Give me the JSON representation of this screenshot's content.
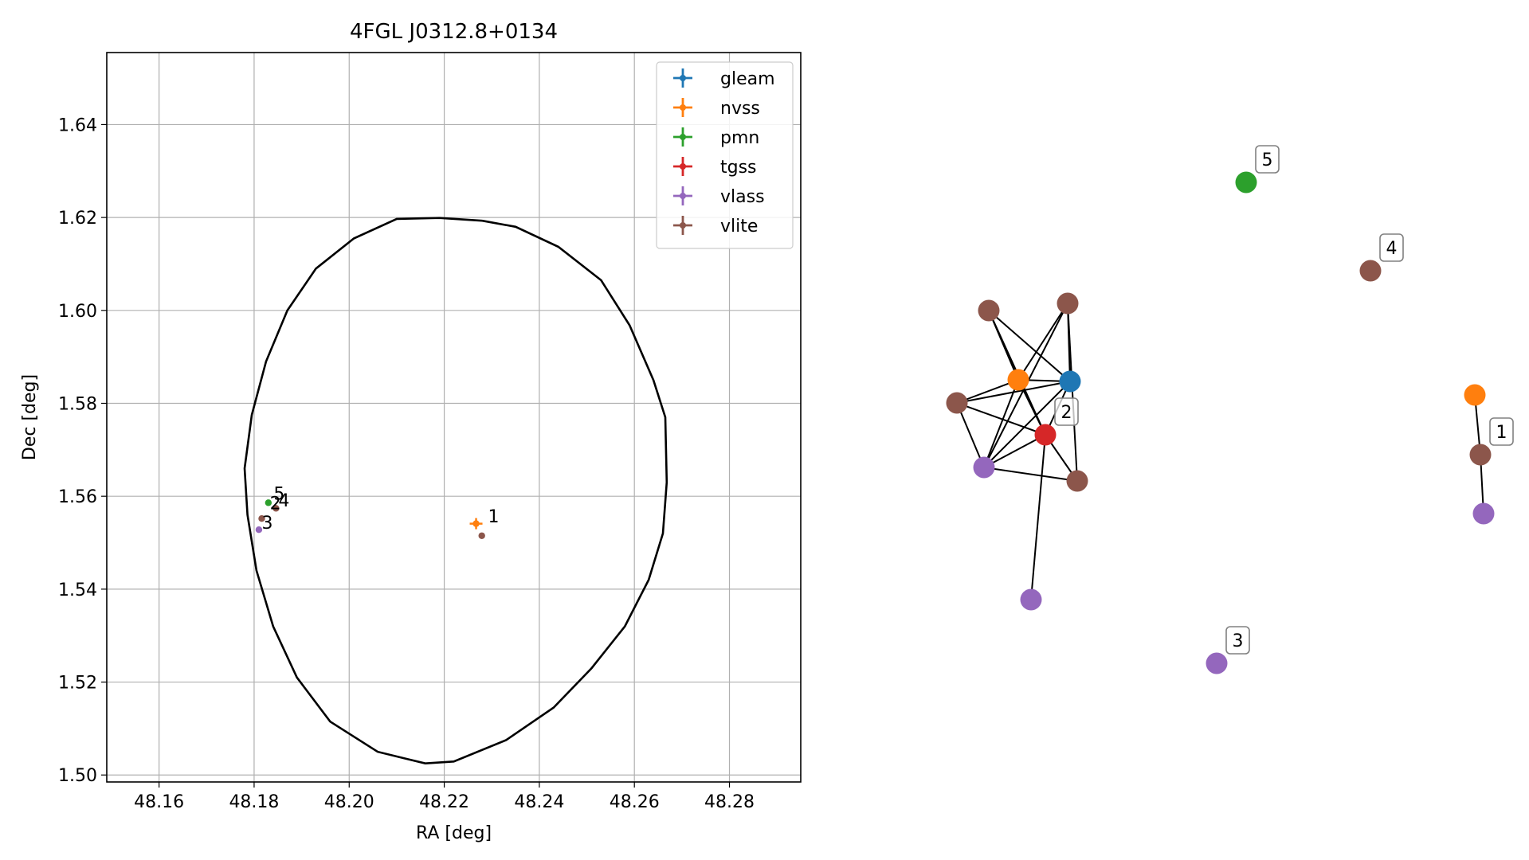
{
  "chart_data": [
    {
      "type": "scatter",
      "title": "4FGL J0312.8+0134",
      "xlabel": "RA [deg]",
      "ylabel": "Dec [deg]",
      "xlim": [
        48.149,
        48.295
      ],
      "ylim": [
        1.4985,
        1.6555
      ],
      "xticks": [
        48.16,
        48.18,
        48.2,
        48.22,
        48.24,
        48.26,
        48.28
      ],
      "xtick_labels": [
        "48.16",
        "48.18",
        "48.20",
        "48.22",
        "48.24",
        "48.26",
        "48.28"
      ],
      "yticks": [
        1.5,
        1.52,
        1.54,
        1.56,
        1.58,
        1.6,
        1.62,
        1.64
      ],
      "ytick_labels": [
        "1.50",
        "1.52",
        "1.54",
        "1.56",
        "1.58",
        "1.60",
        "1.62",
        "1.64"
      ],
      "grid": true,
      "legend_position": "top-right",
      "series": [
        {
          "name": "gleam",
          "color": "#1f77b4",
          "points": []
        },
        {
          "name": "nvss",
          "color": "#ff7f0e",
          "points": [
            {
              "x": 48.2267,
              "y": 1.5541
            }
          ]
        },
        {
          "name": "pmn",
          "color": "#2ca02c",
          "points": [
            {
              "x": 48.183,
              "y": 1.5586
            }
          ]
        },
        {
          "name": "tgss",
          "color": "#d62728",
          "points": []
        },
        {
          "name": "vlass",
          "color": "#9467bd",
          "points": [
            {
              "x": 48.181,
              "y": 1.5528
            }
          ]
        },
        {
          "name": "vlite",
          "color": "#8c564b",
          "points": [
            {
              "x": 48.2279,
              "y": 1.5515
            },
            {
              "x": 48.1846,
              "y": 1.5574
            },
            {
              "x": 48.1816,
              "y": 1.5552
            }
          ]
        }
      ],
      "ellipse": {
        "ra": [
          48.228,
          48.235,
          48.244,
          48.253,
          48.259,
          48.264,
          48.2665,
          48.2668,
          48.266,
          48.263,
          48.258,
          48.251,
          48.243,
          48.233,
          48.222,
          48.216,
          48.206,
          48.196,
          48.189,
          48.184,
          48.1805,
          48.1786,
          48.178,
          48.1795,
          48.1825,
          48.187,
          48.193,
          48.201,
          48.21,
          48.219,
          48.228
        ],
        "dec": [
          1.6193,
          1.618,
          1.6137,
          1.6065,
          1.5968,
          1.585,
          1.577,
          1.563,
          1.552,
          1.542,
          1.532,
          1.523,
          1.5145,
          1.5075,
          1.5029,
          1.5025,
          1.505,
          1.5115,
          1.521,
          1.532,
          1.544,
          1.556,
          1.566,
          1.5775,
          1.589,
          1.6,
          1.609,
          1.6155,
          1.6197,
          1.6199,
          1.6193
        ]
      },
      "point_labels": [
        {
          "text": "1",
          "x": 48.2292,
          "y": 1.5544
        },
        {
          "text": "2",
          "x": 48.1833,
          "y": 1.5572
        },
        {
          "text": "3",
          "x": 48.1816,
          "y": 1.553
        },
        {
          "text": "4",
          "x": 48.1851,
          "y": 1.5578
        },
        {
          "text": "5",
          "x": 48.1841,
          "y": 1.5593
        }
      ]
    },
    {
      "type": "network",
      "nodes": [
        {
          "id": "v1",
          "catalog": "vlite",
          "color": "#8c564b"
        },
        {
          "id": "v2",
          "catalog": "vlite",
          "color": "#8c564b"
        },
        {
          "id": "n1",
          "catalog": "nvss",
          "color": "#ff7f0e"
        },
        {
          "id": "g1",
          "catalog": "gleam",
          "color": "#1f77b4"
        },
        {
          "id": "v3",
          "catalog": "vlite",
          "color": "#8c564b"
        },
        {
          "id": "t1",
          "catalog": "tgss",
          "color": "#d62728"
        },
        {
          "id": "p1",
          "catalog": "vlass",
          "color": "#9467bd"
        },
        {
          "id": "v4",
          "catalog": "vlite",
          "color": "#8c564b"
        },
        {
          "id": "p2",
          "catalog": "vlass",
          "color": "#9467bd"
        },
        {
          "id": "c5",
          "catalog": "pmn",
          "color": "#2ca02c"
        },
        {
          "id": "c4",
          "catalog": "vlite",
          "color": "#8c564b"
        },
        {
          "id": "c1n",
          "catalog": "nvss",
          "color": "#ff7f0e"
        },
        {
          "id": "c1v",
          "catalog": "vlite",
          "color": "#8c564b"
        },
        {
          "id": "c1p",
          "catalog": "vlass",
          "color": "#9467bd"
        },
        {
          "id": "c3",
          "catalog": "vlass",
          "color": "#9467bd"
        }
      ],
      "edges": [
        [
          "v1",
          "n1"
        ],
        [
          "v1",
          "t1"
        ],
        [
          "v1",
          "g1"
        ],
        [
          "v2",
          "n1"
        ],
        [
          "v2",
          "g1"
        ],
        [
          "v2",
          "p1"
        ],
        [
          "v2",
          "v4"
        ],
        [
          "n1",
          "g1"
        ],
        [
          "n1",
          "v3"
        ],
        [
          "n1",
          "t1"
        ],
        [
          "n1",
          "p1"
        ],
        [
          "g1",
          "v3"
        ],
        [
          "g1",
          "t1"
        ],
        [
          "g1",
          "p1"
        ],
        [
          "v3",
          "t1"
        ],
        [
          "v3",
          "p1"
        ],
        [
          "t1",
          "p1"
        ],
        [
          "t1",
          "v4"
        ],
        [
          "t1",
          "p2"
        ],
        [
          "p1",
          "v4"
        ],
        [
          "c1n",
          "c1v"
        ],
        [
          "c1v",
          "c1p"
        ]
      ],
      "labels": [
        {
          "text": "5",
          "node": "c5"
        },
        {
          "text": "4",
          "node": "c4"
        },
        {
          "text": "2",
          "node": "t1"
        },
        {
          "text": "1",
          "node": "c1v"
        },
        {
          "text": "3",
          "node": "c3"
        }
      ]
    }
  ]
}
